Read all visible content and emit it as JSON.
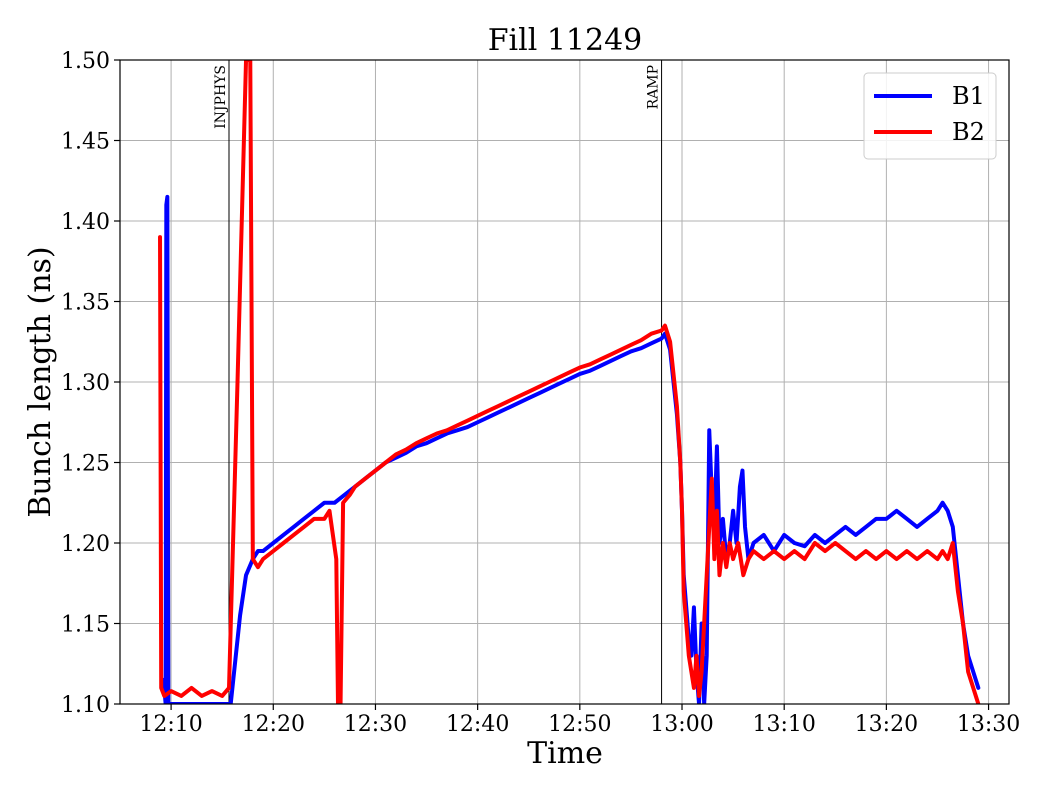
{
  "chart_data": {
    "type": "line",
    "title": "Fill 11249",
    "xlabel": "Time",
    "ylabel": "Bunch length (ns)",
    "xlim": [
      "12:05",
      "13:32"
    ],
    "ylim": [
      1.1,
      1.5
    ],
    "grid": true,
    "legend_position": "top-right",
    "x_ticks": [
      "12:10",
      "12:20",
      "12:30",
      "12:40",
      "12:50",
      "13:00",
      "13:10",
      "13:20",
      "13:30"
    ],
    "y_ticks": [
      "1.10",
      "1.15",
      "1.20",
      "1.25",
      "1.30",
      "1.35",
      "1.40",
      "1.45",
      "1.50"
    ],
    "markers": [
      {
        "label": "INJPHYS",
        "time": "12:15:40"
      },
      {
        "label": "RAMP",
        "time": "12:58:00"
      }
    ],
    "series": [
      {
        "name": "B1",
        "color": "#0000ff",
        "points": [
          [
            "12:09:12",
            1.115
          ],
          [
            "12:09:20",
            1.11
          ],
          [
            "12:09:28",
            1.1
          ],
          [
            "12:09:32",
            1.41
          ],
          [
            "12:09:38",
            1.415
          ],
          [
            "12:09:44",
            1.1
          ],
          [
            "12:09:48",
            1.1
          ],
          [
            "12:15:50",
            1.1
          ],
          [
            "12:16:45",
            1.155
          ],
          [
            "12:17:20",
            1.18
          ],
          [
            "12:18:00",
            1.19
          ],
          [
            "12:18:30",
            1.195
          ],
          [
            "12:19:00",
            1.195
          ],
          [
            "12:20:00",
            1.2
          ],
          [
            "12:21:00",
            1.205
          ],
          [
            "12:22:00",
            1.21
          ],
          [
            "12:23:00",
            1.215
          ],
          [
            "12:24:00",
            1.22
          ],
          [
            "12:25:00",
            1.225
          ],
          [
            "12:26:00",
            1.225
          ],
          [
            "12:27:00",
            1.23
          ],
          [
            "12:28:00",
            1.235
          ],
          [
            "12:29:00",
            1.24
          ],
          [
            "12:30:00",
            1.245
          ],
          [
            "12:31:00",
            1.25
          ],
          [
            "12:32:00",
            1.253
          ],
          [
            "12:33:00",
            1.256
          ],
          [
            "12:34:00",
            1.26
          ],
          [
            "12:35:00",
            1.262
          ],
          [
            "12:36:00",
            1.265
          ],
          [
            "12:37:00",
            1.268
          ],
          [
            "12:38:00",
            1.27
          ],
          [
            "12:39:00",
            1.272
          ],
          [
            "12:40:00",
            1.275
          ],
          [
            "12:41:00",
            1.278
          ],
          [
            "12:42:00",
            1.281
          ],
          [
            "12:43:00",
            1.284
          ],
          [
            "12:44:00",
            1.287
          ],
          [
            "12:45:00",
            1.29
          ],
          [
            "12:46:00",
            1.293
          ],
          [
            "12:47:00",
            1.296
          ],
          [
            "12:48:00",
            1.299
          ],
          [
            "12:49:00",
            1.302
          ],
          [
            "12:50:00",
            1.305
          ],
          [
            "12:51:00",
            1.307
          ],
          [
            "12:52:00",
            1.31
          ],
          [
            "12:53:00",
            1.313
          ],
          [
            "12:54:00",
            1.316
          ],
          [
            "12:55:00",
            1.319
          ],
          [
            "12:56:00",
            1.321
          ],
          [
            "12:57:00",
            1.324
          ],
          [
            "12:58:00",
            1.327
          ],
          [
            "12:58:20",
            1.33
          ],
          [
            "12:58:50",
            1.32
          ],
          [
            "12:59:10",
            1.3
          ],
          [
            "12:59:30",
            1.28
          ],
          [
            "12:59:50",
            1.25
          ],
          [
            "13:00:00",
            1.22
          ],
          [
            "13:00:10",
            1.18
          ],
          [
            "13:00:25",
            1.16
          ],
          [
            "13:00:40",
            1.14
          ],
          [
            "13:00:55",
            1.13
          ],
          [
            "13:01:10",
            1.16
          ],
          [
            "13:01:25",
            1.12
          ],
          [
            "13:01:40",
            1.1
          ],
          [
            "13:01:55",
            1.15
          ],
          [
            "13:02:10",
            1.1
          ],
          [
            "13:02:25",
            1.13
          ],
          [
            "13:02:40",
            1.27
          ],
          [
            "13:02:55",
            1.23
          ],
          [
            "13:03:10",
            1.21
          ],
          [
            "13:03:25",
            1.26
          ],
          [
            "13:03:40",
            1.2
          ],
          [
            "13:04:00",
            1.215
          ],
          [
            "13:04:20",
            1.19
          ],
          [
            "13:04:40",
            1.2
          ],
          [
            "13:05:00",
            1.22
          ],
          [
            "13:05:20",
            1.2
          ],
          [
            "13:05:40",
            1.235
          ],
          [
            "13:05:55",
            1.245
          ],
          [
            "13:06:10",
            1.21
          ],
          [
            "13:06:30",
            1.19
          ],
          [
            "13:07:00",
            1.2
          ],
          [
            "13:08:00",
            1.205
          ],
          [
            "13:09:00",
            1.195
          ],
          [
            "13:10:00",
            1.205
          ],
          [
            "13:11:00",
            1.2
          ],
          [
            "13:12:00",
            1.198
          ],
          [
            "13:13:00",
            1.205
          ],
          [
            "13:14:00",
            1.2
          ],
          [
            "13:15:00",
            1.205
          ],
          [
            "13:16:00",
            1.21
          ],
          [
            "13:17:00",
            1.205
          ],
          [
            "13:18:00",
            1.21
          ],
          [
            "13:19:00",
            1.215
          ],
          [
            "13:20:00",
            1.215
          ],
          [
            "13:21:00",
            1.22
          ],
          [
            "13:22:00",
            1.215
          ],
          [
            "13:23:00",
            1.21
          ],
          [
            "13:24:00",
            1.215
          ],
          [
            "13:25:00",
            1.22
          ],
          [
            "13:25:30",
            1.225
          ],
          [
            "13:26:00",
            1.22
          ],
          [
            "13:26:30",
            1.21
          ],
          [
            "13:27:00",
            1.18
          ],
          [
            "13:27:30",
            1.15
          ],
          [
            "13:28:00",
            1.13
          ],
          [
            "13:28:30",
            1.12
          ],
          [
            "13:29:00",
            1.11
          ]
        ]
      },
      {
        "name": "B2",
        "color": "#ff0000",
        "points": [
          [
            "12:08:55",
            1.39
          ],
          [
            "12:09:02",
            1.11
          ],
          [
            "12:09:20",
            1.105
          ],
          [
            "12:10:00",
            1.108
          ],
          [
            "12:11:00",
            1.105
          ],
          [
            "12:12:00",
            1.11
          ],
          [
            "12:13:00",
            1.105
          ],
          [
            "12:14:00",
            1.108
          ],
          [
            "12:15:00",
            1.105
          ],
          [
            "12:15:40",
            1.11
          ],
          [
            "12:16:30",
            1.3
          ],
          [
            "12:17:20",
            1.5
          ],
          [
            "12:17:45",
            1.5
          ],
          [
            "12:18:00",
            1.19
          ],
          [
            "12:18:30",
            1.185
          ],
          [
            "12:19:00",
            1.19
          ],
          [
            "12:20:00",
            1.195
          ],
          [
            "12:21:00",
            1.2
          ],
          [
            "12:22:00",
            1.205
          ],
          [
            "12:23:00",
            1.21
          ],
          [
            "12:24:00",
            1.215
          ],
          [
            "12:25:00",
            1.215
          ],
          [
            "12:25:30",
            1.22
          ],
          [
            "12:26:10",
            1.19
          ],
          [
            "12:26:20",
            1.1
          ],
          [
            "12:26:35",
            1.1
          ],
          [
            "12:26:50",
            1.225
          ],
          [
            "12:27:30",
            1.23
          ],
          [
            "12:28:00",
            1.235
          ],
          [
            "12:29:00",
            1.24
          ],
          [
            "12:30:00",
            1.245
          ],
          [
            "12:31:00",
            1.25
          ],
          [
            "12:32:00",
            1.255
          ],
          [
            "12:33:00",
            1.258
          ],
          [
            "12:34:00",
            1.262
          ],
          [
            "12:35:00",
            1.265
          ],
          [
            "12:36:00",
            1.268
          ],
          [
            "12:37:00",
            1.27
          ],
          [
            "12:38:00",
            1.273
          ],
          [
            "12:39:00",
            1.276
          ],
          [
            "12:40:00",
            1.279
          ],
          [
            "12:41:00",
            1.282
          ],
          [
            "12:42:00",
            1.285
          ],
          [
            "12:43:00",
            1.288
          ],
          [
            "12:44:00",
            1.291
          ],
          [
            "12:45:00",
            1.294
          ],
          [
            "12:46:00",
            1.297
          ],
          [
            "12:47:00",
            1.3
          ],
          [
            "12:48:00",
            1.303
          ],
          [
            "12:49:00",
            1.306
          ],
          [
            "12:50:00",
            1.309
          ],
          [
            "12:51:00",
            1.311
          ],
          [
            "12:52:00",
            1.314
          ],
          [
            "12:53:00",
            1.317
          ],
          [
            "12:54:00",
            1.32
          ],
          [
            "12:55:00",
            1.323
          ],
          [
            "12:56:00",
            1.326
          ],
          [
            "12:57:00",
            1.33
          ],
          [
            "12:58:00",
            1.332
          ],
          [
            "12:58:20",
            1.335
          ],
          [
            "12:58:50",
            1.325
          ],
          [
            "12:59:10",
            1.305
          ],
          [
            "12:59:30",
            1.285
          ],
          [
            "12:59:50",
            1.25
          ],
          [
            "13:00:00",
            1.22
          ],
          [
            "13:00:10",
            1.17
          ],
          [
            "13:00:25",
            1.15
          ],
          [
            "13:00:40",
            1.13
          ],
          [
            "13:00:55",
            1.12
          ],
          [
            "13:01:10",
            1.11
          ],
          [
            "13:01:25",
            1.13
          ],
          [
            "13:01:40",
            1.105
          ],
          [
            "13:01:55",
            1.12
          ],
          [
            "13:02:10",
            1.15
          ],
          [
            "13:02:25",
            1.18
          ],
          [
            "13:02:40",
            1.21
          ],
          [
            "13:02:55",
            1.24
          ],
          [
            "13:03:10",
            1.19
          ],
          [
            "13:03:25",
            1.22
          ],
          [
            "13:03:40",
            1.18
          ],
          [
            "13:04:00",
            1.2
          ],
          [
            "13:04:20",
            1.185
          ],
          [
            "13:04:40",
            1.2
          ],
          [
            "13:05:00",
            1.19
          ],
          [
            "13:05:30",
            1.2
          ],
          [
            "13:06:00",
            1.18
          ],
          [
            "13:06:30",
            1.19
          ],
          [
            "13:07:00",
            1.195
          ],
          [
            "13:08:00",
            1.19
          ],
          [
            "13:09:00",
            1.195
          ],
          [
            "13:10:00",
            1.19
          ],
          [
            "13:11:00",
            1.195
          ],
          [
            "13:12:00",
            1.19
          ],
          [
            "13:13:00",
            1.2
          ],
          [
            "13:14:00",
            1.195
          ],
          [
            "13:15:00",
            1.2
          ],
          [
            "13:16:00",
            1.195
          ],
          [
            "13:17:00",
            1.19
          ],
          [
            "13:18:00",
            1.195
          ],
          [
            "13:19:00",
            1.19
          ],
          [
            "13:20:00",
            1.195
          ],
          [
            "13:21:00",
            1.19
          ],
          [
            "13:22:00",
            1.195
          ],
          [
            "13:23:00",
            1.19
          ],
          [
            "13:24:00",
            1.195
          ],
          [
            "13:25:00",
            1.19
          ],
          [
            "13:25:30",
            1.195
          ],
          [
            "13:26:00",
            1.19
          ],
          [
            "13:26:30",
            1.2
          ],
          [
            "13:27:00",
            1.17
          ],
          [
            "13:27:30",
            1.15
          ],
          [
            "13:28:00",
            1.12
          ],
          [
            "13:28:30",
            1.11
          ],
          [
            "13:29:00",
            1.1
          ]
        ]
      }
    ]
  }
}
